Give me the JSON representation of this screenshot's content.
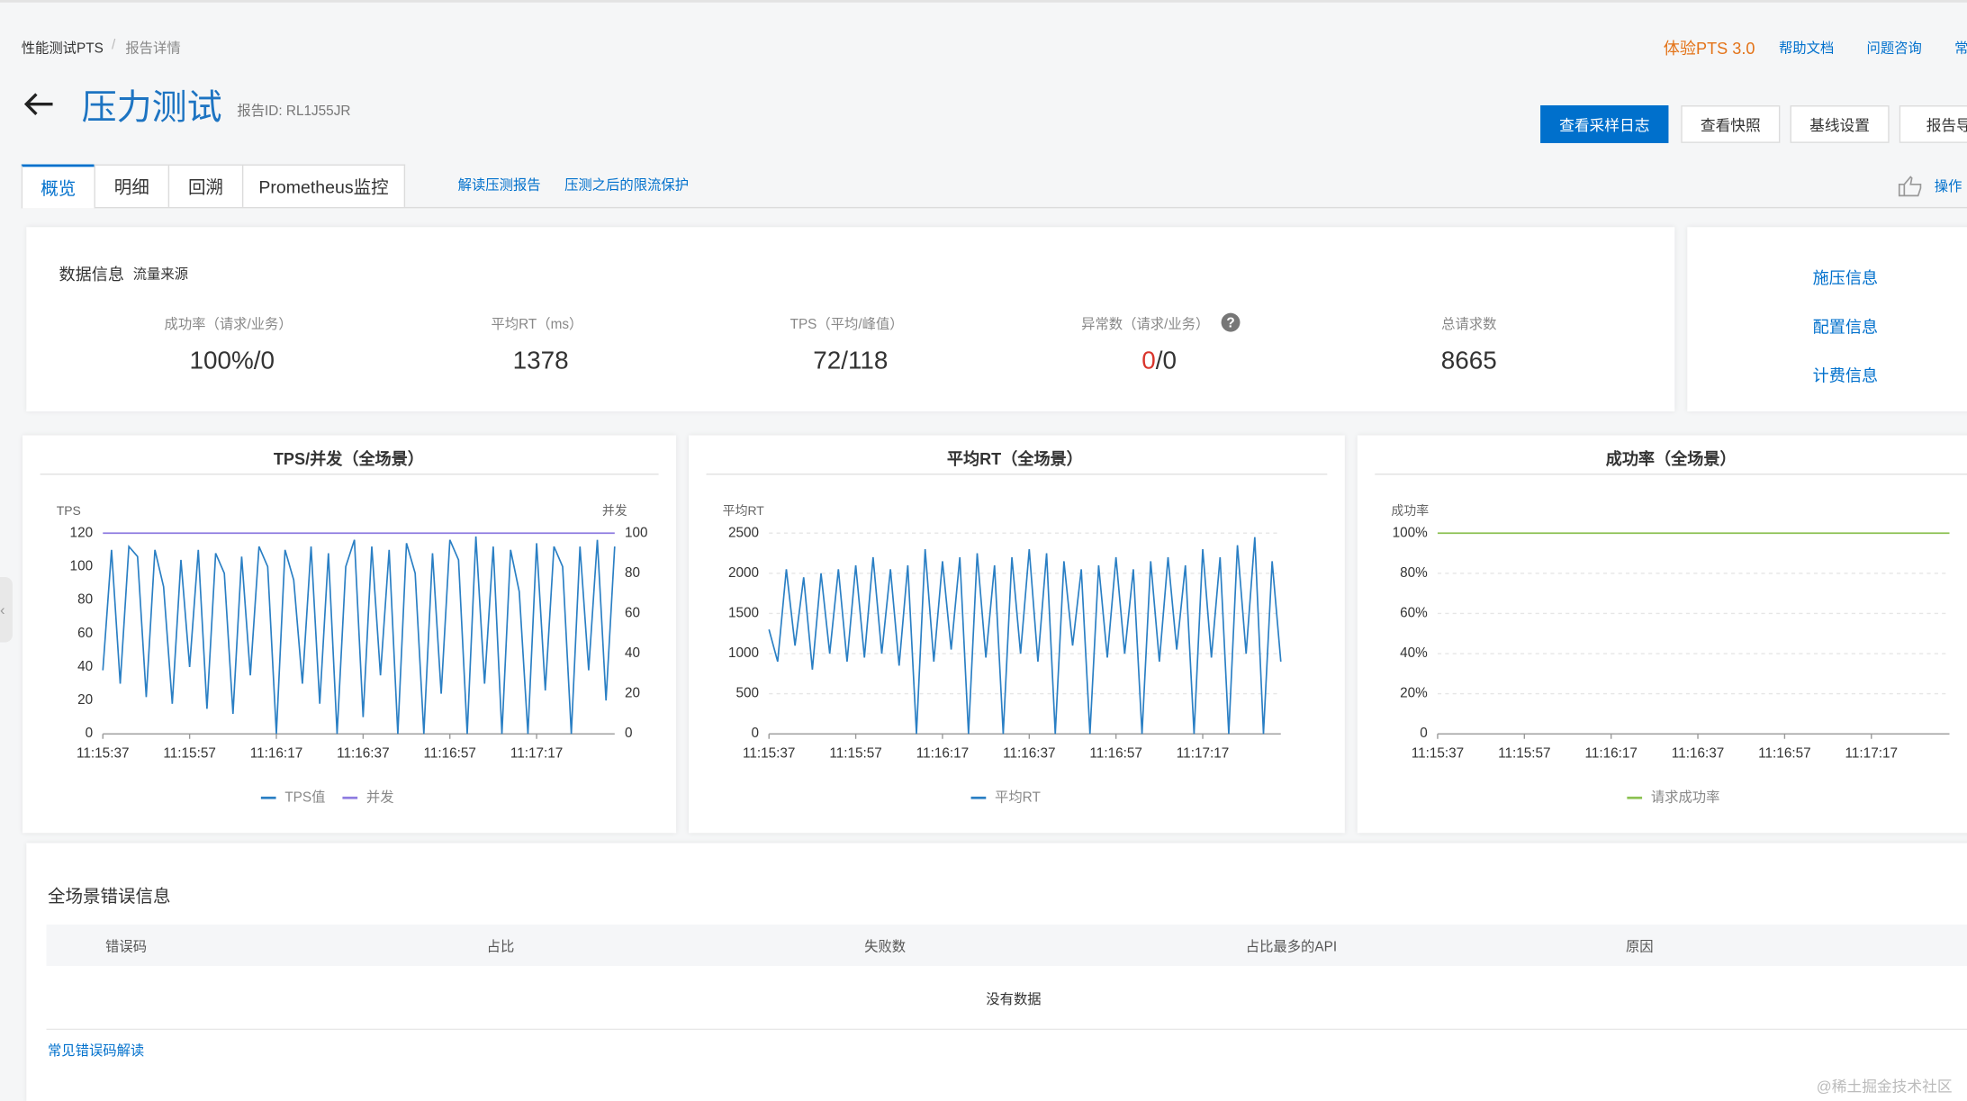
{
  "breadcrumb": [
    "性能测试PTS",
    "报告详情"
  ],
  "top_links": [
    "体验PTS 3.0",
    "帮助文档",
    "问题咨询",
    "常"
  ],
  "title": "压力测试",
  "report_id": "报告ID:  RL1J55JR",
  "buttons": [
    "查看采样日志",
    "查看快照",
    "基线设置",
    "报告导"
  ],
  "tabs": [
    "概览",
    "明细",
    "回溯",
    "Prometheus监控"
  ],
  "tab_links": [
    "解读压测报告",
    "压测之后的限流保护"
  ],
  "operation": "操作",
  "data_info": {
    "title": "数据信息",
    "source": "流量来源",
    "metrics": [
      {
        "label": "成功率（请求/业务）",
        "value": "100%/0"
      },
      {
        "label": "平均RT（ms）",
        "value": "1378"
      },
      {
        "label": "TPS（平均/峰值）",
        "value": "72/118"
      },
      {
        "label": "异常数（请求/业务）",
        "value": "0",
        "value_suffix": "/0"
      },
      {
        "label": "总请求数",
        "value": "8665"
      }
    ]
  },
  "side_links": [
    "施压信息",
    "配置信息",
    "计费信息"
  ],
  "charts": {
    "x": [
      "11:15:37",
      "11:15:39",
      "11:15:41",
      "11:15:43",
      "11:15:45",
      "11:15:47",
      "11:15:49",
      "11:15:51",
      "11:15:53",
      "11:15:55",
      "11:15:57",
      "11:15:59",
      "11:16:01",
      "11:16:03",
      "11:16:05",
      "11:16:07",
      "11:16:09",
      "11:16:11",
      "11:16:13",
      "11:16:15",
      "11:16:17",
      "11:16:19",
      "11:16:21",
      "11:16:23",
      "11:16:25",
      "11:16:27",
      "11:16:29",
      "11:16:31",
      "11:16:33",
      "11:16:35",
      "11:16:37",
      "11:16:39",
      "11:16:41",
      "11:16:43",
      "11:16:45",
      "11:16:47",
      "11:16:49",
      "11:16:51",
      "11:16:53",
      "11:16:55",
      "11:16:57",
      "11:16:59",
      "11:17:01",
      "11:17:03",
      "11:17:05",
      "11:17:07",
      "11:17:09",
      "11:17:11",
      "11:17:13",
      "11:17:15",
      "11:17:17",
      "11:17:19",
      "11:17:21",
      "11:17:23",
      "11:17:25",
      "11:17:27",
      "11:17:29",
      "11:17:31",
      "11:17:33",
      "11:17:35"
    ],
    "xticks": [
      "11:15:37",
      "11:15:57",
      "11:16:17",
      "11:16:37",
      "11:16:57",
      "11:17:17"
    ],
    "items": [
      {
        "type": "line",
        "title": "TPS/并发（全场景）",
        "ylabel": "TPS",
        "y2label": "并发",
        "ylim": [
          0,
          120
        ],
        "yticks": [
          0,
          20,
          40,
          60,
          80,
          100,
          120
        ],
        "y2lim": [
          0,
          100
        ],
        "y2ticks": [
          0,
          20,
          40,
          60,
          80,
          100
        ],
        "grid": false,
        "series": [
          {
            "name": "TPS值",
            "color": "#2a7fc4",
            "values": [
              38,
              110,
              30,
              112,
              106,
              22,
              110,
              88,
              18,
              104,
              40,
              110,
              15,
              108,
              96,
              12,
              106,
              35,
              112,
              100,
              0,
              110,
              92,
              30,
              112,
              18,
              108,
              0,
              100,
              116,
              10,
              112,
              35,
              110,
              0,
              114,
              96,
              0,
              108,
              24,
              116,
              104,
              0,
              118,
              30,
              112,
              0,
              110,
              85,
              0,
              114,
              26,
              112,
              100,
              0,
              112,
              38,
              116,
              20,
              112
            ]
          },
          {
            "name": "并发",
            "color": "#8e7ce0",
            "axis": "y2",
            "values": [
              100,
              100,
              100,
              100,
              100,
              100,
              100,
              100,
              100,
              100,
              100,
              100,
              100,
              100,
              100,
              100,
              100,
              100,
              100,
              100,
              100,
              100,
              100,
              100,
              100,
              100,
              100,
              100,
              100,
              100,
              100,
              100,
              100,
              100,
              100,
              100,
              100,
              100,
              100,
              100,
              100,
              100,
              100,
              100,
              100,
              100,
              100,
              100,
              100,
              100,
              100,
              100,
              100,
              100,
              100,
              100,
              100,
              100,
              100,
              100
            ]
          }
        ]
      },
      {
        "type": "line",
        "title": "平均RT（全场景）",
        "ylabel": "平均RT",
        "ylim": [
          0,
          2500
        ],
        "yticks": [
          0,
          500,
          1000,
          1500,
          2000,
          2500
        ],
        "grid": true,
        "series": [
          {
            "name": "平均RT",
            "color": "#2a7fc4",
            "values": [
              1300,
              900,
              2050,
              1100,
              1950,
              800,
              2000,
              1000,
              2050,
              900,
              2100,
              950,
              2200,
              1000,
              2050,
              850,
              2100,
              0,
              2300,
              900,
              2150,
              1050,
              2200,
              0,
              2250,
              950,
              2100,
              0,
              2200,
              1000,
              2300,
              900,
              2250,
              0,
              2150,
              1100,
              2050,
              0,
              2100,
              950,
              2200,
              1000,
              2050,
              0,
              2150,
              900,
              2200,
              1050,
              2100,
              0,
              2300,
              950,
              2200,
              0,
              2350,
              1000,
              2450,
              0,
              2150,
              900
            ]
          }
        ]
      },
      {
        "type": "line",
        "title": "成功率（全场景）",
        "ylabel": "成功率",
        "ylim": [
          0,
          100
        ],
        "yticks": [
          0,
          {
            "value": 20,
            "label": "20%"
          },
          {
            "value": 40,
            "label": "40%"
          },
          {
            "value": 60,
            "label": "60%"
          },
          {
            "value": 80,
            "label": "80%"
          },
          {
            "value": 100,
            "label": "100%"
          }
        ],
        "grid": true,
        "series": [
          {
            "name": "请求成功率",
            "color": "#8cc152",
            "values": [
              100,
              100,
              100,
              100,
              100,
              100,
              100,
              100,
              100,
              100,
              100,
              100,
              100,
              100,
              100,
              100,
              100,
              100,
              100,
              100,
              100,
              100,
              100,
              100,
              100,
              100,
              100,
              100,
              100,
              100,
              100,
              100,
              100,
              100,
              100,
              100,
              100,
              100,
              100,
              100,
              100,
              100,
              100,
              100,
              100,
              100,
              100,
              100,
              100,
              100,
              100,
              100,
              100,
              100,
              100,
              100,
              100,
              100,
              100,
              100
            ]
          }
        ]
      }
    ]
  },
  "errors": {
    "title": "全场景错误信息",
    "columns": [
      "错误码",
      "占比",
      "失败数",
      "占比最多的API",
      "原因"
    ],
    "empty": "没有数据",
    "link": "常见错误码解读"
  },
  "watermark": "@稀土掘金技术社区"
}
